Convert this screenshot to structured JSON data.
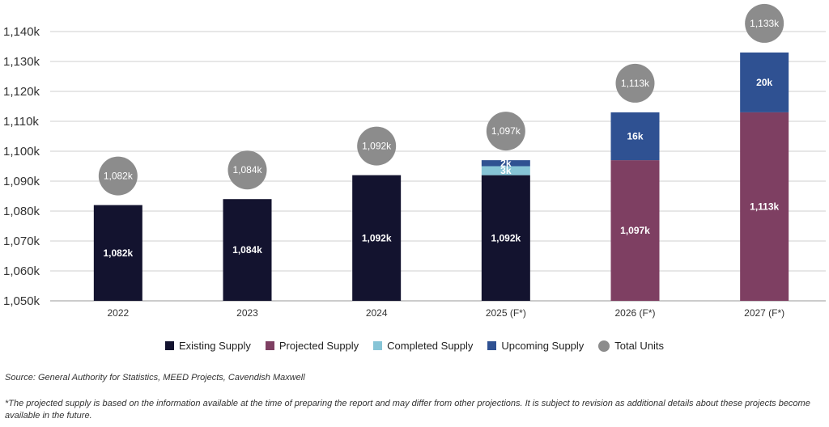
{
  "chart_data": {
    "type": "bar",
    "stacked": true,
    "title": "",
    "xlabel": "",
    "ylabel": "",
    "ylim": [
      1050,
      1140
    ],
    "yticks": [
      1050,
      1060,
      1070,
      1080,
      1090,
      1100,
      1110,
      1120,
      1130,
      1140
    ],
    "ytick_labels": [
      "1,050k",
      "1,060k",
      "1,070k",
      "1,080k",
      "1,090k",
      "1,100k",
      "1,110k",
      "1,120k",
      "1,130k",
      "1,140k"
    ],
    "grid": true,
    "legend_position": "bottom",
    "categories": [
      "2022",
      "2023",
      "2024",
      "2025 (F*)",
      "2026 (F*)",
      "2027 (F*)"
    ],
    "series": [
      {
        "name": "Existing Supply",
        "color": "#13132f",
        "values": [
          1082,
          1084,
          1092,
          1092,
          null,
          null
        ],
        "labels": [
          "1,082k",
          "1,084k",
          "1,092k",
          "1,092k",
          "",
          ""
        ]
      },
      {
        "name": "Projected Supply",
        "color": "#7e3f62",
        "values": [
          null,
          null,
          null,
          null,
          1097,
          1113
        ],
        "labels": [
          "",
          "",
          "",
          "",
          "1,097k",
          "1,113k"
        ]
      },
      {
        "name": "Completed Supply",
        "color": "#86c4d6",
        "values": [
          null,
          null,
          null,
          3,
          null,
          null
        ],
        "labels": [
          "",
          "",
          "",
          "3k",
          "",
          ""
        ]
      },
      {
        "name": "Upcoming Supply",
        "color": "#2f5192",
        "values": [
          null,
          null,
          null,
          2,
          16,
          20
        ],
        "labels": [
          "",
          "",
          "",
          "2k",
          "16k",
          "20k"
        ]
      }
    ],
    "total_units": {
      "name": "Total Units",
      "color": "#8c8c8c",
      "values": [
        1082,
        1084,
        1092,
        1097,
        1113,
        1133
      ],
      "labels": [
        "1,082k",
        "1,084k",
        "1,092k",
        "1,097k",
        "1,113k",
        "1,133k"
      ]
    }
  },
  "legend": [
    {
      "label": "Existing Supply",
      "color": "#13132f",
      "shape": "square"
    },
    {
      "label": "Projected Supply",
      "color": "#7e3f62",
      "shape": "square"
    },
    {
      "label": "Completed Supply",
      "color": "#86c4d6",
      "shape": "square"
    },
    {
      "label": "Upcoming Supply",
      "color": "#2f5192",
      "shape": "square"
    },
    {
      "label": "Total Units",
      "color": "#8c8c8c",
      "shape": "circle"
    }
  ],
  "source": "Source: General Authority for Statistics, MEED Projects, Cavendish Maxwell",
  "note": "*The projected supply is based on the information available at the time of preparing the report and may differ from other projections. It is subject to revision as additional details about these projects become available in the future."
}
